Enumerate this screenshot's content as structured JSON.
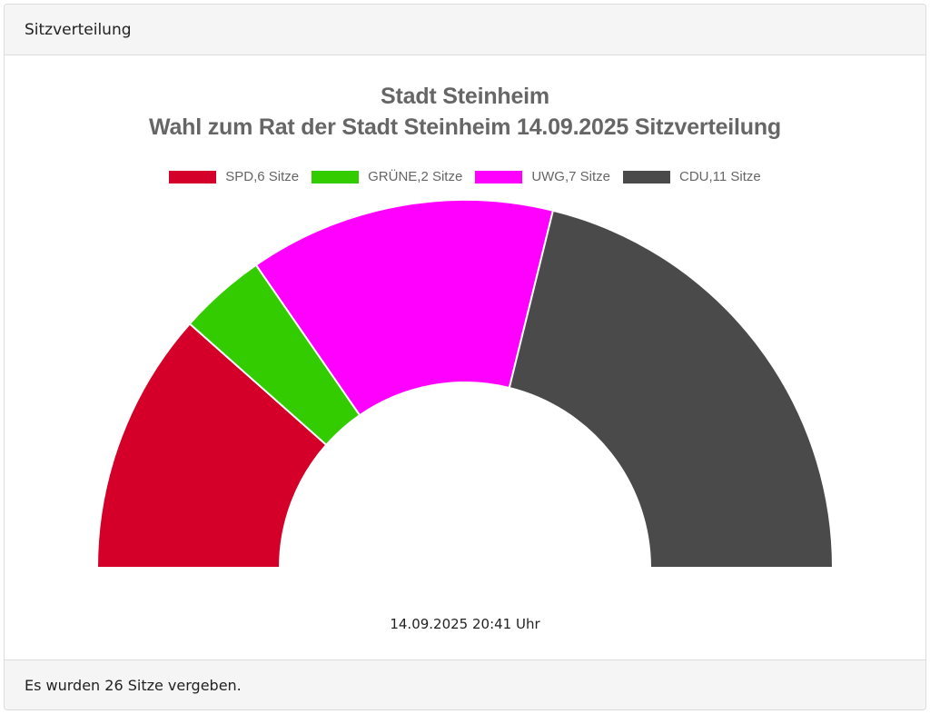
{
  "card": {
    "header_title": "Sitzverteilung",
    "footer_text": "Es wurden 26 Sitze vergeben."
  },
  "chart": {
    "timestamp": "14.09.2025 20:41 Uhr"
  },
  "chart_data": {
    "type": "pie",
    "subtype": "semicircle-donut (parliament seat distribution)",
    "title": "Stadt Steinheim",
    "subtitle": "Wahl zum Rat der Stadt Steinheim 14.09.2025 Sitzverteilung",
    "categories": [
      "SPD",
      "GRÜNE",
      "UWG",
      "CDU"
    ],
    "values": [
      6,
      2,
      7,
      11
    ],
    "total": 26,
    "unit": "Sitze",
    "colors": [
      "#d50029",
      "#33cc00",
      "#ff00ff",
      "#4a4a4a"
    ],
    "legend": [
      {
        "label": "SPD,6 Sitze",
        "color": "#d50029"
      },
      {
        "label": "GRÜNE,2 Sitze",
        "color": "#33cc00"
      },
      {
        "label": "UWG,7 Sitze",
        "color": "#ff00ff"
      },
      {
        "label": "CDU,11 Sitze",
        "color": "#4a4a4a"
      }
    ],
    "legend_position": "top",
    "footnote": "14.09.2025 20:41 Uhr"
  }
}
